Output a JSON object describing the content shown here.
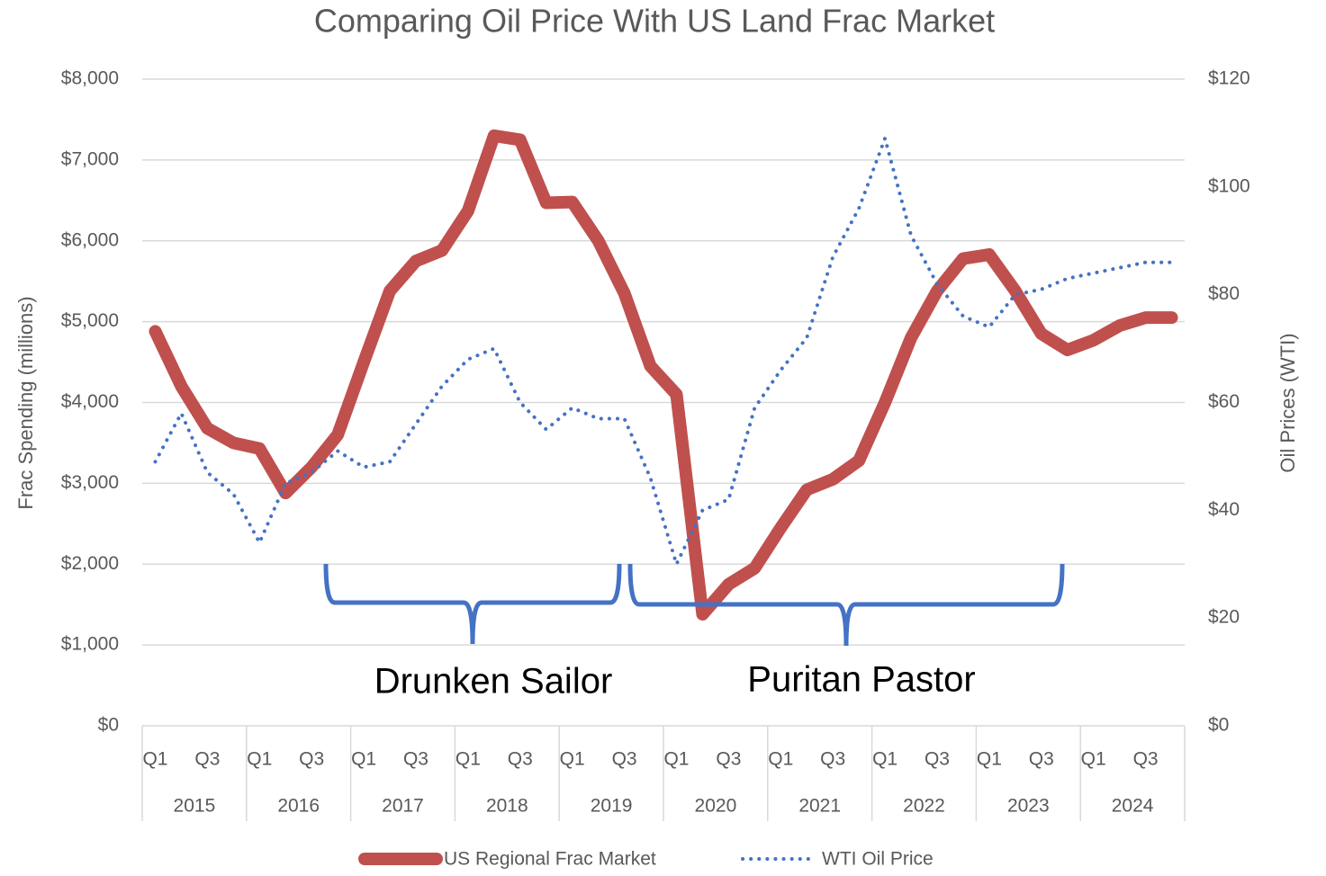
{
  "chart_data": {
    "type": "line",
    "title": "Comparing Oil Price With US Land Frac Market",
    "y_label": "Frac Spending (millions)",
    "y2_label": "Oil Prices (WTI)",
    "categories": [
      "Q1",
      null,
      "Q3",
      null,
      "Q1",
      null,
      "Q3",
      null,
      "Q1",
      null,
      "Q3",
      null,
      "Q1",
      null,
      "Q3",
      null,
      "Q1",
      null,
      "Q3",
      null,
      "Q1",
      null,
      "Q3",
      null,
      "Q1",
      null,
      "Q3",
      null,
      "Q1",
      null,
      "Q3",
      null,
      "Q1",
      null,
      "Q3",
      null,
      "Q1",
      null,
      "Q3",
      null
    ],
    "years": [
      "2015",
      "2016",
      "2017",
      "2018",
      "2019",
      "2020",
      "2021",
      "2022",
      "2023",
      "2024"
    ],
    "series": [
      {
        "name": "US Regional Frac Market",
        "color": "#c0504d",
        "line_style": "solid",
        "values": [
          4880,
          4200,
          3680,
          3500,
          3430,
          2880,
          3200,
          3600,
          4500,
          5380,
          5750,
          5880,
          6370,
          7300,
          7250,
          6470,
          6480,
          6000,
          5350,
          4450,
          4100,
          1380,
          1750,
          1950,
          2450,
          2920,
          3050,
          3280,
          4000,
          4800,
          5380,
          5780,
          5830,
          5380,
          4850,
          4650,
          4770,
          4950,
          5050,
          5050
        ]
      },
      {
        "name": "WTI Oil Price",
        "color": "#4472c4",
        "line_style": "dotted",
        "axis": "y2",
        "values": [
          49,
          58,
          47,
          43,
          34,
          45,
          47,
          51,
          48,
          49,
          56,
          63,
          68,
          70,
          60,
          55,
          59,
          57,
          57,
          46,
          30,
          40,
          42,
          59,
          66,
          72,
          87,
          96,
          109,
          91,
          82,
          76,
          74,
          80,
          81,
          83,
          84,
          85,
          86,
          86
        ]
      }
    ],
    "ylim": [
      0,
      8000
    ],
    "yticks": [
      {
        "value": 0,
        "label": "$0"
      },
      {
        "value": 1000,
        "label": "$1,000"
      },
      {
        "value": 2000,
        "label": "$2,000"
      },
      {
        "value": 3000,
        "label": "$3,000"
      },
      {
        "value": 4000,
        "label": "$4,000"
      },
      {
        "value": 5000,
        "label": "$5,000"
      },
      {
        "value": 6000,
        "label": "$6,000"
      },
      {
        "value": 7000,
        "label": "$7,000"
      },
      {
        "value": 8000,
        "label": "$8,000"
      }
    ],
    "y2lim": [
      0,
      120
    ],
    "y2ticks": [
      {
        "value": 0,
        "label": "$0"
      },
      {
        "value": 20,
        "label": "$20"
      },
      {
        "value": 40,
        "label": "$40"
      },
      {
        "value": 60,
        "label": "$60"
      },
      {
        "value": 80,
        "label": "$80"
      },
      {
        "value": 100,
        "label": "$100"
      },
      {
        "value": 120,
        "label": "$120"
      }
    ],
    "grid": true,
    "legend": "bottom",
    "annotations": [
      "Drunken Sailor",
      "Puritan Pastor"
    ]
  }
}
